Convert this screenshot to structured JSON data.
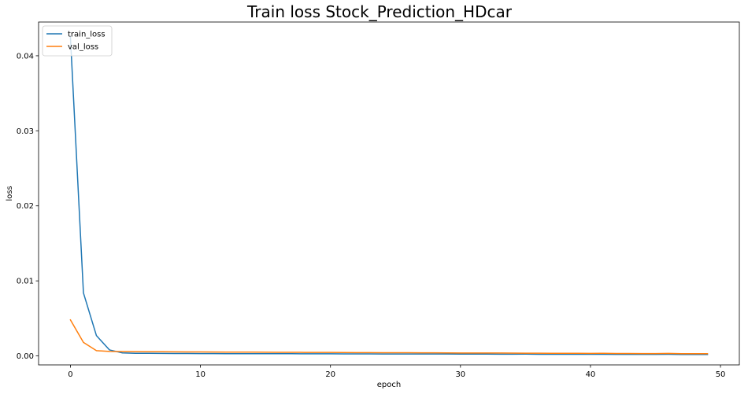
{
  "chart_data": {
    "type": "line",
    "title": "Train loss Stock_Prediction_HDcar",
    "xlabel": "epoch",
    "ylabel": "loss",
    "xlim": [
      -2.45,
      51.45
    ],
    "ylim": [
      -0.0012,
      0.0445
    ],
    "xticks": [
      0,
      10,
      20,
      30,
      40,
      50
    ],
    "yticks": [
      0.0,
      0.01,
      0.02,
      0.03,
      0.04
    ],
    "ytick_labels": [
      "0.00",
      "0.01",
      "0.02",
      "0.03",
      "0.04"
    ],
    "grid": false,
    "legend_position": "upper left",
    "series": [
      {
        "name": "train_loss",
        "color": "#1f77b4",
        "x": [
          0,
          1,
          2,
          3,
          4,
          5,
          6,
          7,
          8,
          9,
          10,
          11,
          12,
          13,
          14,
          15,
          16,
          17,
          18,
          19,
          20,
          21,
          22,
          23,
          24,
          25,
          26,
          27,
          28,
          29,
          30,
          31,
          32,
          33,
          34,
          35,
          36,
          37,
          38,
          39,
          40,
          41,
          42,
          43,
          44,
          45,
          46,
          47,
          48,
          49
        ],
        "y": [
          0.0425,
          0.0084,
          0.0027,
          0.0008,
          0.0004,
          0.00035,
          0.00034,
          0.00033,
          0.00032,
          0.00032,
          0.00031,
          0.00031,
          0.0003,
          0.0003,
          0.0003,
          0.00029,
          0.00029,
          0.00029,
          0.00028,
          0.00028,
          0.00028,
          0.00027,
          0.00027,
          0.00027,
          0.00026,
          0.00026,
          0.00026,
          0.00025,
          0.00025,
          0.00025,
          0.00024,
          0.00024,
          0.00024,
          0.00023,
          0.00023,
          0.00024,
          0.00022,
          0.00022,
          0.00022,
          0.00021,
          0.00021,
          0.00022,
          0.0002,
          0.0002,
          0.0002,
          0.0002,
          0.00021,
          0.00019,
          0.00019,
          0.00019
        ]
      },
      {
        "name": "val_loss",
        "color": "#ff7f0e",
        "x": [
          0,
          1,
          2,
          3,
          4,
          5,
          6,
          7,
          8,
          9,
          10,
          11,
          12,
          13,
          14,
          15,
          16,
          17,
          18,
          19,
          20,
          21,
          22,
          23,
          24,
          25,
          26,
          27,
          28,
          29,
          30,
          31,
          32,
          33,
          34,
          35,
          36,
          37,
          38,
          39,
          40,
          41,
          42,
          43,
          44,
          45,
          46,
          47,
          48,
          49
        ],
        "y": [
          0.0048,
          0.0018,
          0.0007,
          0.0006,
          0.00058,
          0.00057,
          0.00056,
          0.00055,
          0.00054,
          0.00053,
          0.00053,
          0.00052,
          0.00051,
          0.0005,
          0.0005,
          0.00049,
          0.00048,
          0.00048,
          0.00047,
          0.00046,
          0.00046,
          0.00045,
          0.00044,
          0.00044,
          0.00043,
          0.00042,
          0.00042,
          0.00041,
          0.00041,
          0.0004,
          0.00039,
          0.00039,
          0.00038,
          0.00038,
          0.00037,
          0.00036,
          0.00036,
          0.00035,
          0.00035,
          0.00034,
          0.00033,
          0.00035,
          0.00032,
          0.00032,
          0.00031,
          0.00031,
          0.00033,
          0.0003,
          0.0003,
          0.0003
        ]
      }
    ]
  }
}
